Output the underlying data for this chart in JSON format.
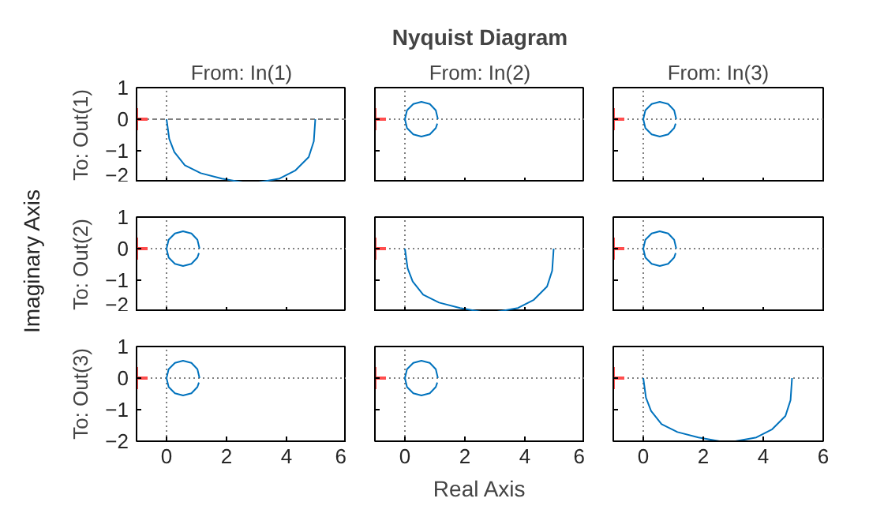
{
  "chart_data": [
    {
      "type": "line",
      "title": "From: In(1)",
      "ylabel": "To: Out(1)",
      "xlim": [
        -1,
        6
      ],
      "ylim": [
        -2,
        1
      ],
      "xticks": [
        0,
        2,
        4,
        6
      ],
      "yticks": [
        -2,
        -1,
        0,
        1
      ],
      "tick_labels": "y",
      "ref_lines": [
        {
          "axis": "x",
          "value": 0,
          "color": "#808080",
          "line_style": "dotted"
        },
        {
          "axis": "y",
          "value": 0,
          "color": "#808080",
          "line_style": "dashed"
        }
      ],
      "series": [
        {
          "type": "line",
          "color": "#0072bd",
          "x": [
            0,
            0.09,
            0.26,
            0.61,
            1.14,
            1.84,
            2.54,
            3.07,
            3.77,
            4.3,
            4.74,
            4.91,
            4.96
          ],
          "values": [
            0,
            -0.62,
            -1.04,
            -1.46,
            -1.71,
            -1.88,
            -2.0,
            -2.0,
            -1.88,
            -1.62,
            -1.2,
            -0.7,
            0
          ]
        },
        {
          "type": "scatter",
          "marker": "cross",
          "color": "#ff4d4d",
          "x": [
            -1
          ],
          "values": [
            0
          ]
        }
      ]
    },
    {
      "type": "line",
      "title": "From: In(2)",
      "xlim": [
        -1,
        6
      ],
      "ylim": [
        -2,
        1
      ],
      "xticks": [
        0,
        2,
        4,
        6
      ],
      "yticks": [
        -2,
        -1,
        0,
        1
      ],
      "tick_labels": false,
      "ref_lines": [
        {
          "axis": "x",
          "value": 0,
          "color": "#808080",
          "line_style": "dotted"
        },
        {
          "axis": "y",
          "value": 0,
          "color": "#808080",
          "line_style": "dotted"
        }
      ],
      "series": [
        {
          "type": "line",
          "color": "#0072bd",
          "x": [
            1.1,
            1.03,
            0.83,
            0.55,
            0.28,
            0.07,
            0,
            0.07,
            0.28,
            0.55,
            0.83,
            1.03,
            1.08
          ],
          "values": [
            0,
            0.28,
            0.48,
            0.55,
            0.48,
            0.28,
            0,
            -0.28,
            -0.48,
            -0.55,
            -0.48,
            -0.28,
            -0.14
          ]
        },
        {
          "type": "scatter",
          "marker": "cross",
          "color": "#ff4d4d",
          "x": [
            -1
          ],
          "values": [
            0
          ]
        }
      ]
    },
    {
      "type": "line",
      "title": "From: In(3)",
      "xlim": [
        -1,
        6
      ],
      "ylim": [
        -2,
        1
      ],
      "xticks": [
        0,
        2,
        4,
        6
      ],
      "yticks": [
        -2,
        -1,
        0,
        1
      ],
      "tick_labels": false,
      "ref_lines": [
        {
          "axis": "x",
          "value": 0,
          "color": "#808080",
          "line_style": "dotted"
        },
        {
          "axis": "y",
          "value": 0,
          "color": "#808080",
          "line_style": "dotted"
        }
      ],
      "series": [
        {
          "type": "line",
          "color": "#0072bd",
          "x": [
            1.1,
            1.03,
            0.83,
            0.55,
            0.28,
            0.07,
            0,
            0.07,
            0.28,
            0.55,
            0.83,
            1.03,
            1.08
          ],
          "values": [
            0,
            0.28,
            0.48,
            0.55,
            0.48,
            0.28,
            0,
            -0.28,
            -0.48,
            -0.55,
            -0.48,
            -0.28,
            -0.14
          ]
        },
        {
          "type": "scatter",
          "marker": "cross",
          "color": "#ff4d4d",
          "x": [
            -1
          ],
          "values": [
            0
          ]
        }
      ]
    },
    {
      "type": "line",
      "ylabel": "To: Out(2)",
      "xlim": [
        -1,
        6
      ],
      "ylim": [
        -2,
        1
      ],
      "xticks": [
        0,
        2,
        4,
        6
      ],
      "yticks": [
        -2,
        -1,
        0,
        1
      ],
      "tick_labels": "y",
      "ref_lines": [
        {
          "axis": "x",
          "value": 0,
          "color": "#808080",
          "line_style": "dotted"
        },
        {
          "axis": "y",
          "value": 0,
          "color": "#808080",
          "line_style": "dotted"
        }
      ],
      "series": [
        {
          "type": "line",
          "color": "#0072bd",
          "x": [
            1.1,
            1.03,
            0.83,
            0.55,
            0.28,
            0.07,
            0,
            0.07,
            0.28,
            0.55,
            0.83,
            1.03,
            1.08
          ],
          "values": [
            0,
            0.28,
            0.48,
            0.55,
            0.48,
            0.28,
            0,
            -0.28,
            -0.48,
            -0.55,
            -0.48,
            -0.28,
            -0.14
          ]
        },
        {
          "type": "scatter",
          "marker": "cross",
          "color": "#ff4d4d",
          "x": [
            -1
          ],
          "values": [
            0
          ]
        }
      ]
    },
    {
      "type": "line",
      "xlim": [
        -1,
        6
      ],
      "ylim": [
        -2,
        1
      ],
      "xticks": [
        0,
        2,
        4,
        6
      ],
      "yticks": [
        -2,
        -1,
        0,
        1
      ],
      "tick_labels": false,
      "ref_lines": [
        {
          "axis": "x",
          "value": 0,
          "color": "#808080",
          "line_style": "dotted"
        },
        {
          "axis": "y",
          "value": 0,
          "color": "#808080",
          "line_style": "dotted"
        }
      ],
      "series": [
        {
          "type": "line",
          "color": "#0072bd",
          "x": [
            0,
            0.09,
            0.26,
            0.61,
            1.14,
            1.84,
            2.54,
            3.07,
            3.77,
            4.3,
            4.74,
            4.91,
            4.96
          ],
          "values": [
            0,
            -0.62,
            -1.04,
            -1.46,
            -1.71,
            -1.88,
            -2.0,
            -2.0,
            -1.88,
            -1.62,
            -1.2,
            -0.7,
            0
          ]
        },
        {
          "type": "scatter",
          "marker": "cross",
          "color": "#ff4d4d",
          "x": [
            -1
          ],
          "values": [
            0
          ]
        }
      ]
    },
    {
      "type": "line",
      "xlim": [
        -1,
        6
      ],
      "ylim": [
        -2,
        1
      ],
      "xticks": [
        0,
        2,
        4,
        6
      ],
      "yticks": [
        -2,
        -1,
        0,
        1
      ],
      "tick_labels": false,
      "ref_lines": [
        {
          "axis": "x",
          "value": 0,
          "color": "#808080",
          "line_style": "dotted"
        },
        {
          "axis": "y",
          "value": 0,
          "color": "#808080",
          "line_style": "dotted"
        }
      ],
      "series": [
        {
          "type": "line",
          "color": "#0072bd",
          "x": [
            1.1,
            1.03,
            0.83,
            0.55,
            0.28,
            0.07,
            0,
            0.07,
            0.28,
            0.55,
            0.83,
            1.03,
            1.08
          ],
          "values": [
            0,
            0.28,
            0.48,
            0.55,
            0.48,
            0.28,
            0,
            -0.28,
            -0.48,
            -0.55,
            -0.48,
            -0.28,
            -0.14
          ]
        },
        {
          "type": "scatter",
          "marker": "cross",
          "color": "#ff4d4d",
          "x": [
            -1
          ],
          "values": [
            0
          ]
        }
      ]
    },
    {
      "type": "line",
      "ylabel": "To: Out(3)",
      "xlim": [
        -1,
        6
      ],
      "ylim": [
        -2,
        1
      ],
      "xticks": [
        0,
        2,
        4,
        6
      ],
      "yticks": [
        -2,
        -1,
        0,
        1
      ],
      "ref_lines": [
        {
          "axis": "x",
          "value": 0,
          "color": "#808080",
          "line_style": "dotted"
        },
        {
          "axis": "y",
          "value": 0,
          "color": "#808080",
          "line_style": "dotted"
        }
      ],
      "series": [
        {
          "type": "line",
          "color": "#0072bd",
          "x": [
            1.1,
            1.03,
            0.83,
            0.55,
            0.28,
            0.07,
            0,
            0.07,
            0.28,
            0.55,
            0.83,
            1.03,
            1.08
          ],
          "values": [
            0,
            0.28,
            0.48,
            0.55,
            0.48,
            0.28,
            0,
            -0.28,
            -0.48,
            -0.55,
            -0.48,
            -0.28,
            -0.14
          ]
        },
        {
          "type": "scatter",
          "marker": "cross",
          "color": "#ff4d4d",
          "x": [
            -1
          ],
          "values": [
            0
          ]
        }
      ]
    },
    {
      "type": "line",
      "xlim": [
        -1,
        6
      ],
      "ylim": [
        -2,
        1
      ],
      "xticks": [
        0,
        2,
        4,
        6
      ],
      "yticks": [
        -2,
        -1,
        0,
        1
      ],
      "tick_labels": "x",
      "ref_lines": [
        {
          "axis": "x",
          "value": 0,
          "color": "#808080",
          "line_style": "dotted"
        },
        {
          "axis": "y",
          "value": 0,
          "color": "#808080",
          "line_style": "dotted"
        }
      ],
      "series": [
        {
          "type": "line",
          "color": "#0072bd",
          "x": [
            1.1,
            1.03,
            0.83,
            0.55,
            0.28,
            0.07,
            0,
            0.07,
            0.28,
            0.55,
            0.83,
            1.03,
            1.08
          ],
          "values": [
            0,
            0.28,
            0.48,
            0.55,
            0.48,
            0.28,
            0,
            -0.28,
            -0.48,
            -0.55,
            -0.48,
            -0.28,
            -0.14
          ]
        },
        {
          "type": "scatter",
          "marker": "cross",
          "color": "#ff4d4d",
          "x": [
            -1
          ],
          "values": [
            0
          ]
        }
      ]
    },
    {
      "type": "line",
      "xlim": [
        -1,
        6
      ],
      "ylim": [
        -2,
        1
      ],
      "xticks": [
        0,
        2,
        4,
        6
      ],
      "yticks": [
        -2,
        -1,
        0,
        1
      ],
      "tick_labels": "x",
      "ref_lines": [
        {
          "axis": "x",
          "value": 0,
          "color": "#808080",
          "line_style": "dotted"
        },
        {
          "axis": "y",
          "value": 0,
          "color": "#808080",
          "line_style": "dotted"
        }
      ],
      "series": [
        {
          "type": "line",
          "color": "#0072bd",
          "x": [
            0,
            0.09,
            0.26,
            0.61,
            1.14,
            1.84,
            2.54,
            3.07,
            3.77,
            4.3,
            4.74,
            4.91,
            4.96
          ],
          "values": [
            0,
            -0.62,
            -1.04,
            -1.46,
            -1.71,
            -1.88,
            -2.0,
            -2.0,
            -1.88,
            -1.62,
            -1.2,
            -0.7,
            0
          ]
        },
        {
          "type": "scatter",
          "marker": "cross",
          "color": "#ff4d4d",
          "x": [
            -1
          ],
          "values": [
            0
          ]
        }
      ]
    },
    {
      "type": "other",
      "title": "Nyquist Diagram",
      "xlabel": "Real Axis",
      "ylabel": "Imaginary Axis"
    }
  ]
}
